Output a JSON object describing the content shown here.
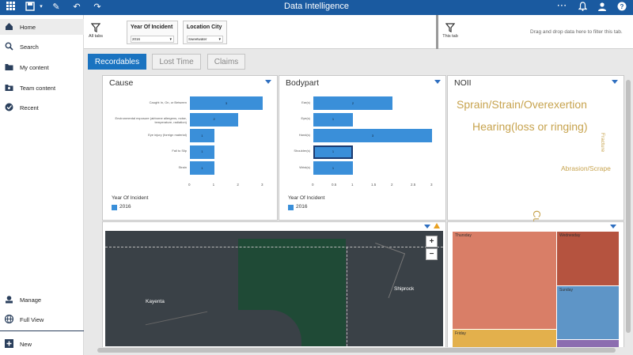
{
  "app": {
    "title": "Data Intelligence"
  },
  "colors": {
    "brand": "#1a5aa0",
    "accent": "#1a73c0",
    "bar": "#3a8fd9",
    "wordcloud": "#c7a34e"
  },
  "topbar": {
    "icons": [
      "grid-icon",
      "save-icon",
      "pencil-icon",
      "undo-icon",
      "redo-icon",
      "more-icon",
      "bell-icon",
      "user-icon",
      "help-icon"
    ]
  },
  "sidebar": {
    "items": [
      {
        "label": "Home",
        "icon": "home-icon"
      },
      {
        "label": "Search",
        "icon": "search-icon"
      },
      {
        "label": "My content",
        "icon": "folder-icon"
      },
      {
        "label": "Team content",
        "icon": "team-folder-icon"
      },
      {
        "label": "Recent",
        "icon": "recent-icon"
      }
    ],
    "bottom": [
      {
        "label": "Manage",
        "icon": "manage-icon"
      },
      {
        "label": "Full View",
        "icon": "globe-icon"
      },
      {
        "label": "New",
        "icon": "plus-icon"
      }
    ]
  },
  "filters": {
    "all_tabs": "All tabs",
    "this_tab": "This tab",
    "chips": [
      {
        "title": "Year Of Incident",
        "value": "2016"
      },
      {
        "title": "Location City",
        "value": "Sweetwater"
      }
    ],
    "drop_hint": "Drag and drop data here to filter this tab."
  },
  "tabs": [
    "Recordables",
    "Lost Time",
    "Claims"
  ],
  "cause": {
    "title": "Cause",
    "chart_data": {
      "type": "bar",
      "orientation": "horizontal",
      "categories": [
        "Caught In, On, or Between",
        "Environmental exposure (airborne allergens, noise, temperature, radiation)",
        "Eye injury (foreign material)",
        "Fall to Slip",
        "Strain"
      ],
      "values": [
        3,
        2,
        1,
        1,
        1
      ],
      "xlim": [
        0,
        3
      ],
      "ticks": [
        "0",
        "1",
        "2",
        "3"
      ],
      "legend_title": "Year Of Incident",
      "legend": [
        "2016"
      ]
    }
  },
  "bodypart": {
    "title": "Bodypart",
    "chart_data": {
      "type": "bar",
      "orientation": "horizontal",
      "categories": [
        "Ear(s)",
        "Eye(s)",
        "Hand(s)",
        "Shoulder(s)",
        "Wrist(s)"
      ],
      "values": [
        2,
        1,
        3,
        1,
        1
      ],
      "xlim": [
        0,
        3
      ],
      "ticks": [
        "0",
        "0.5",
        "1",
        "1.5",
        "2",
        "2.5",
        "3"
      ],
      "legend_title": "Year Of Incident",
      "legend": [
        "2016"
      ]
    }
  },
  "noii": {
    "title": "NOII",
    "words": [
      "Sprain/Strain/Overexertion",
      "Hearing(loss or ringing)",
      "Cut/laceration",
      "Abrasion/Scrape",
      "Fracture"
    ]
  },
  "map": {
    "places": [
      "Kayenta",
      "Shiprock"
    ],
    "zoom_in": "+",
    "zoom_out": "−"
  },
  "treemap": {
    "cells": [
      "Thursday",
      "Wednesday",
      "Sunday",
      "Friday"
    ]
  }
}
